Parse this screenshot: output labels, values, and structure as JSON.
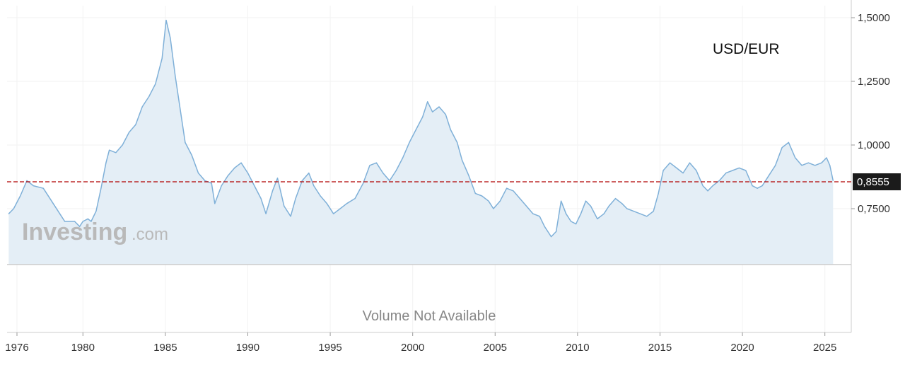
{
  "watermark": {
    "brand": "Investing",
    "suffix": ".com"
  },
  "volume_text": "Volume Not Available",
  "colors": {
    "line": "#7fb0d8",
    "area": "#e4eef6",
    "last_price_line": "#b00000",
    "last_price_box": "#1b1b1b",
    "grid": "#f2f2f2",
    "axis": "#cccccc"
  },
  "chart_data": {
    "type": "area",
    "title": "USD/EUR",
    "xlabel": "",
    "ylabel": "",
    "xlim": [
      1975.4,
      2026.6
    ],
    "ylim": [
      0.47,
      1.51
    ],
    "x_ticks": [
      "1976",
      "1980",
      "1985",
      "1990",
      "1995",
      "2000",
      "2005",
      "2010",
      "2015",
      "2020",
      "2025"
    ],
    "x_tick_values": [
      1976,
      1980,
      1985,
      1990,
      1995,
      2000,
      2005,
      2010,
      2015,
      2020,
      2025
    ],
    "y_ticks": [
      "1,5000",
      "1,2500",
      "1,0000",
      "0,7500"
    ],
    "y_tick_values": [
      1.5,
      1.25,
      1.0,
      0.75
    ],
    "last_value": 0.8555,
    "last_value_label": "0,8555",
    "grid": true,
    "series": [
      {
        "x": [
          1975.5,
          1975.8,
          1976.2,
          1976.6,
          1977.0,
          1977.6,
          1978.2,
          1978.6,
          1978.9,
          1979.5,
          1979.8,
          1980.0,
          1980.3,
          1980.5,
          1980.8,
          1981.1,
          1981.4,
          1981.6,
          1982.0,
          1982.4,
          1982.8,
          1983.2,
          1983.6,
          1984.0,
          1984.4,
          1984.8,
          1985.05,
          1985.3,
          1985.6,
          1985.9,
          1986.2,
          1986.6,
          1987.0,
          1987.4,
          1987.8,
          1988.0,
          1988.4,
          1988.8,
          1989.2,
          1989.6,
          1990.0,
          1990.4,
          1990.8,
          1991.1,
          1991.5,
          1991.8,
          1992.2,
          1992.6,
          1992.9,
          1993.3,
          1993.7,
          1994.0,
          1994.4,
          1994.8,
          1995.2,
          1995.6,
          1996.0,
          1996.5,
          1997.0,
          1997.4,
          1997.8,
          1998.2,
          1998.6,
          1999.0,
          1999.4,
          1999.8,
          2000.2,
          2000.6,
          2000.9,
          2001.2,
          2001.6,
          2002.0,
          2002.3,
          2002.7,
          2003.0,
          2003.4,
          2003.8,
          2004.2,
          2004.6,
          2004.9,
          2005.3,
          2005.7,
          2006.1,
          2006.5,
          2006.9,
          2007.3,
          2007.7,
          2008.0,
          2008.4,
          2008.7,
          2009.0,
          2009.3,
          2009.6,
          2009.9,
          2010.2,
          2010.5,
          2010.8,
          2011.2,
          2011.6,
          2011.9,
          2012.3,
          2012.7,
          2013.0,
          2013.4,
          2013.8,
          2014.2,
          2014.6,
          2014.9,
          2015.2,
          2015.6,
          2016.0,
          2016.4,
          2016.8,
          2017.2,
          2017.6,
          2017.9,
          2018.2,
          2018.6,
          2019.0,
          2019.4,
          2019.8,
          2020.2,
          2020.6,
          2020.9,
          2021.2,
          2021.6,
          2022.0,
          2022.4,
          2022.8,
          2023.2,
          2023.6,
          2024.0,
          2024.4,
          2024.8,
          2025.1,
          2025.3,
          2025.5
        ],
        "values": [
          0.73,
          0.75,
          0.8,
          0.86,
          0.84,
          0.83,
          0.77,
          0.73,
          0.7,
          0.7,
          0.68,
          0.7,
          0.71,
          0.7,
          0.74,
          0.83,
          0.93,
          0.98,
          0.97,
          1.0,
          1.05,
          1.08,
          1.15,
          1.19,
          1.24,
          1.34,
          1.49,
          1.42,
          1.27,
          1.14,
          1.01,
          0.96,
          0.89,
          0.86,
          0.85,
          0.77,
          0.84,
          0.88,
          0.91,
          0.93,
          0.89,
          0.84,
          0.79,
          0.73,
          0.82,
          0.87,
          0.76,
          0.72,
          0.79,
          0.86,
          0.89,
          0.84,
          0.8,
          0.77,
          0.73,
          0.75,
          0.77,
          0.79,
          0.85,
          0.92,
          0.93,
          0.89,
          0.86,
          0.9,
          0.95,
          1.01,
          1.06,
          1.11,
          1.17,
          1.13,
          1.15,
          1.12,
          1.06,
          1.01,
          0.94,
          0.88,
          0.81,
          0.8,
          0.78,
          0.75,
          0.78,
          0.83,
          0.82,
          0.79,
          0.76,
          0.73,
          0.72,
          0.68,
          0.64,
          0.66,
          0.78,
          0.73,
          0.7,
          0.69,
          0.73,
          0.78,
          0.76,
          0.71,
          0.73,
          0.76,
          0.79,
          0.77,
          0.75,
          0.74,
          0.73,
          0.72,
          0.74,
          0.81,
          0.9,
          0.93,
          0.91,
          0.89,
          0.93,
          0.9,
          0.84,
          0.82,
          0.84,
          0.86,
          0.89,
          0.9,
          0.91,
          0.9,
          0.84,
          0.83,
          0.84,
          0.88,
          0.92,
          0.99,
          1.01,
          0.95,
          0.92,
          0.93,
          0.92,
          0.93,
          0.95,
          0.92,
          0.86
        ]
      }
    ]
  }
}
